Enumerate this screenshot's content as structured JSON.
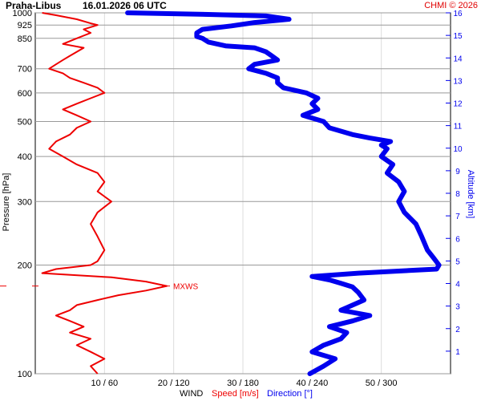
{
  "header": {
    "station": "Praha-Libus",
    "datetime": "16.01.2026 06 UTC",
    "credit": "CHMI © 2026"
  },
  "footer": {
    "wind": "WIND",
    "speed": "Speed [m/s]",
    "direction": "Direction [°]"
  },
  "colors": {
    "speed": "#ee0000",
    "direction": "#0000ee",
    "grid": "#999999"
  },
  "chart_data": {
    "type": "line",
    "y_axis": {
      "label": "Pressure [hPa]",
      "scale": "log",
      "range": [
        1000,
        100
      ],
      "ticks": [
        100,
        200,
        300,
        400,
        500,
        600,
        700,
        850,
        925,
        1000
      ]
    },
    "alt_axis": {
      "label": "Altitude [km]",
      "ticks": [
        1,
        2,
        3,
        4,
        5,
        6,
        7,
        8,
        9,
        10,
        11,
        12,
        13,
        14,
        15,
        16
      ],
      "color": "#0000ee"
    },
    "x_axis": {
      "ticks": [
        "10 / 60",
        "20 / 120",
        "30 / 180",
        "40 / 240",
        "50 / 300"
      ],
      "speed_range": [
        0,
        60
      ],
      "direction_range": [
        0,
        360
      ]
    },
    "annotation": {
      "label": "MXWS",
      "pressure": 175,
      "speed": 19
    },
    "series": [
      {
        "name": "Speed [m/s]",
        "color": "#ee0000",
        "points": [
          [
            1000,
            1
          ],
          [
            985,
            3
          ],
          [
            960,
            6
          ],
          [
            935,
            8
          ],
          [
            925,
            9
          ],
          [
            900,
            7
          ],
          [
            880,
            8
          ],
          [
            850,
            6
          ],
          [
            820,
            4
          ],
          [
            800,
            7
          ],
          [
            780,
            6
          ],
          [
            760,
            5
          ],
          [
            740,
            4
          ],
          [
            720,
            3
          ],
          [
            700,
            2
          ],
          [
            680,
            4
          ],
          [
            660,
            5
          ],
          [
            640,
            7
          ],
          [
            620,
            9
          ],
          [
            600,
            10
          ],
          [
            580,
            8
          ],
          [
            560,
            6
          ],
          [
            540,
            4
          ],
          [
            520,
            6
          ],
          [
            500,
            8
          ],
          [
            480,
            6
          ],
          [
            460,
            5
          ],
          [
            440,
            3
          ],
          [
            420,
            2
          ],
          [
            400,
            4
          ],
          [
            380,
            6
          ],
          [
            360,
            9
          ],
          [
            340,
            10
          ],
          [
            320,
            9
          ],
          [
            300,
            11
          ],
          [
            280,
            9
          ],
          [
            260,
            8
          ],
          [
            240,
            9
          ],
          [
            220,
            10
          ],
          [
            205,
            9
          ],
          [
            200,
            8
          ],
          [
            195,
            3
          ],
          [
            190,
            1
          ],
          [
            185,
            11
          ],
          [
            180,
            16
          ],
          [
            175,
            19
          ],
          [
            170,
            16
          ],
          [
            165,
            12
          ],
          [
            160,
            9
          ],
          [
            155,
            6
          ],
          [
            150,
            5
          ],
          [
            145,
            3
          ],
          [
            140,
            5
          ],
          [
            135,
            7
          ],
          [
            130,
            5
          ],
          [
            125,
            8
          ],
          [
            120,
            6
          ],
          [
            115,
            8
          ],
          [
            110,
            10
          ],
          [
            105,
            8
          ],
          [
            100,
            9
          ]
        ]
      },
      {
        "name": "Direction [°]",
        "color": "#0000ee",
        "points": [
          [
            1000,
            80
          ],
          [
            990,
            150
          ],
          [
            980,
            200
          ],
          [
            960,
            220
          ],
          [
            940,
            190
          ],
          [
            920,
            170
          ],
          [
            900,
            145
          ],
          [
            880,
            140
          ],
          [
            860,
            140
          ],
          [
            850,
            145
          ],
          [
            830,
            150
          ],
          [
            810,
            165
          ],
          [
            800,
            190
          ],
          [
            780,
            200
          ],
          [
            760,
            205
          ],
          [
            740,
            210
          ],
          [
            720,
            190
          ],
          [
            700,
            185
          ],
          [
            680,
            200
          ],
          [
            660,
            210
          ],
          [
            640,
            210
          ],
          [
            620,
            215
          ],
          [
            600,
            235
          ],
          [
            580,
            245
          ],
          [
            560,
            240
          ],
          [
            540,
            245
          ],
          [
            520,
            232
          ],
          [
            500,
            250
          ],
          [
            480,
            255
          ],
          [
            460,
            275
          ],
          [
            450,
            290
          ],
          [
            440,
            308
          ],
          [
            430,
            300
          ],
          [
            420,
            305
          ],
          [
            400,
            300
          ],
          [
            380,
            310
          ],
          [
            360,
            305
          ],
          [
            340,
            315
          ],
          [
            320,
            320
          ],
          [
            300,
            315
          ],
          [
            280,
            320
          ],
          [
            260,
            330
          ],
          [
            240,
            335
          ],
          [
            220,
            340
          ],
          [
            210,
            345
          ],
          [
            200,
            350
          ],
          [
            195,
            348
          ],
          [
            190,
            280
          ],
          [
            186,
            240
          ],
          [
            182,
            255
          ],
          [
            178,
            265
          ],
          [
            174,
            275
          ],
          [
            168,
            280
          ],
          [
            160,
            285
          ],
          [
            150,
            265
          ],
          [
            145,
            290
          ],
          [
            140,
            275
          ],
          [
            135,
            255
          ],
          [
            130,
            270
          ],
          [
            125,
            265
          ],
          [
            120,
            250
          ],
          [
            115,
            240
          ],
          [
            110,
            260
          ],
          [
            105,
            250
          ],
          [
            100,
            238
          ]
        ]
      }
    ]
  }
}
